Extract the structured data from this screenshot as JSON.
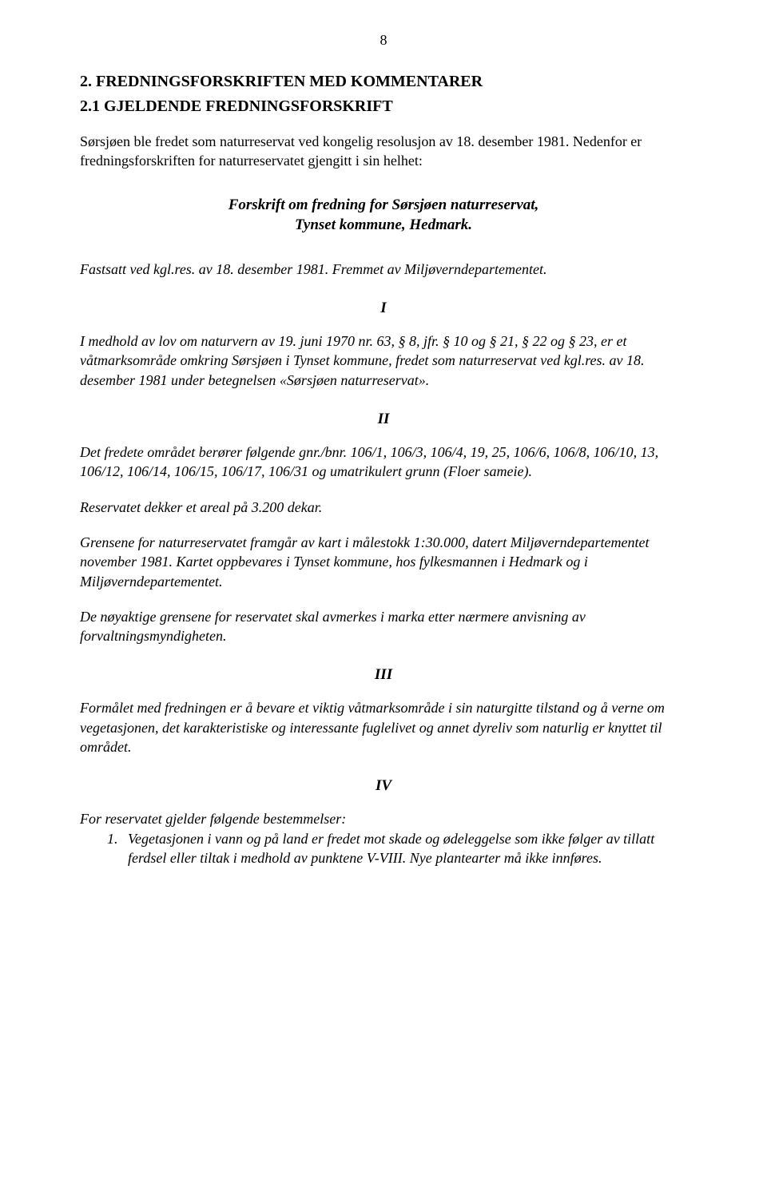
{
  "page_number": "8",
  "h_main": "2. FREDNINGSFORSKRIFTEN MED KOMMENTARER",
  "h_sub": "2.1 GJELDENDE FREDNINGSFORSKRIFT",
  "intro": "Sørsjøen ble fredet som naturreservat ved kongelig resolusjon av 18. desember 1981. Nedenfor er fredningsforskriften for naturreservatet gjengitt i sin helhet:",
  "forskrift_title_l1": "Forskrift om fredning for Sørsjøen naturreservat,",
  "forskrift_title_l2": "Tynset kommune, Hedmark.",
  "fastsatt": "Fastsatt ved kgl.res. av 18. desember 1981. Fremmet av Miljøverndepartementet.",
  "roman": {
    "i": "I",
    "ii": "II",
    "iii": "III",
    "iv": "IV"
  },
  "sec_i": "I medhold av lov om naturvern av 19. juni 1970 nr. 63, § 8, jfr. § 10 og § 21, § 22 og § 23, er et våtmarksområde omkring Sørsjøen i Tynset kommune, fredet som naturreservat ved kgl.res. av 18. desember 1981 under betegnelsen «Sørsjøen naturreservat».",
  "sec_ii_p1": "Det fredete området berører følgende gnr./bnr. 106/1, 106/3, 106/4, 19, 25, 106/6, 106/8, 106/10, 13, 106/12, 106/14, 106/15, 106/17, 106/31 og umatrikulert grunn (Floer sameie).",
  "sec_ii_p2": "Reservatet dekker et areal på 3.200 dekar.",
  "sec_ii_p3": "Grensene for naturreservatet framgår av kart i målestokk 1:30.000, datert Miljøverndepartementet november 1981. Kartet oppbevares i Tynset kommune, hos fylkesmannen i Hedmark og i Miljøverndepartementet.",
  "sec_ii_p4": "De nøyaktige grensene for reservatet skal avmerkes i marka etter nærmere anvisning av forvaltningsmyndigheten.",
  "sec_iii": "Formålet med fredningen er å bevare et viktig våtmarksområde i sin naturgitte tilstand og å verne om vegetasjonen, det karakteristiske og interessante fuglelivet og annet dyreliv som naturlig er knyttet til området.",
  "sec_iv_intro": "For reservatet gjelder følgende bestemmelser:",
  "sec_iv_item1_marker": "1.",
  "sec_iv_item1": "Vegetasjonen i vann og på land er fredet mot skade og ødeleggelse som ikke følger av tillatt ferdsel eller tiltak i medhold av punktene V-VIII. Nye plantearter må ikke innføres."
}
